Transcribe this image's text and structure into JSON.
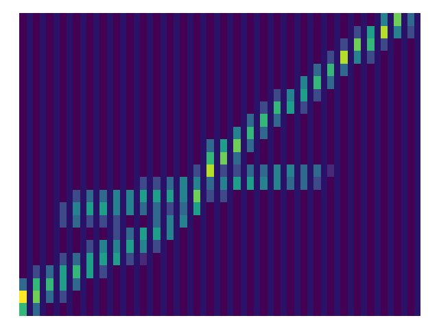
{
  "chart_data": {
    "type": "heatmap",
    "tick_labels": false,
    "color_range": [
      0,
      9
    ],
    "cells": [
      [
        6,
        9,
        3,
        0,
        0,
        0,
        0,
        0,
        0,
        0,
        0,
        0,
        0,
        0,
        0,
        0,
        0,
        0,
        0,
        0,
        0,
        0,
        0,
        0
      ],
      [
        3,
        7,
        6,
        2,
        0,
        0,
        0,
        0,
        0,
        0,
        0,
        0,
        0,
        0,
        0,
        0,
        0,
        0,
        0,
        0,
        0,
        0,
        0,
        0
      ],
      [
        0,
        3,
        6,
        3,
        0,
        0,
        0,
        0,
        0,
        0,
        0,
        0,
        0,
        0,
        0,
        0,
        0,
        0,
        0,
        0,
        0,
        0,
        0,
        0
      ],
      [
        0,
        2,
        5,
        5,
        2,
        0,
        0,
        2,
        2,
        0,
        0,
        0,
        0,
        0,
        0,
        0,
        0,
        0,
        0,
        0,
        0,
        0,
        0,
        0
      ],
      [
        0,
        0,
        3,
        6,
        3,
        0,
        0,
        3,
        4,
        2,
        0,
        0,
        0,
        0,
        0,
        0,
        0,
        0,
        0,
        0,
        0,
        0,
        0,
        0
      ],
      [
        0,
        0,
        0,
        5,
        5,
        2,
        0,
        2,
        5,
        3,
        0,
        0,
        0,
        0,
        0,
        0,
        0,
        0,
        0,
        0,
        0,
        0,
        0,
        0
      ],
      [
        0,
        0,
        0,
        2,
        5,
        4,
        0,
        2,
        5,
        3,
        0,
        0,
        0,
        0,
        0,
        0,
        0,
        0,
        0,
        0,
        0,
        0,
        0,
        0
      ],
      [
        0,
        0,
        0,
        0,
        5,
        4,
        2,
        2,
        4,
        4,
        0,
        0,
        0,
        0,
        0,
        0,
        0,
        0,
        0,
        0,
        0,
        0,
        0,
        0
      ],
      [
        0,
        0,
        0,
        0,
        2,
        5,
        3,
        0,
        4,
        4,
        0,
        0,
        0,
        0,
        0,
        0,
        0,
        0,
        0,
        0,
        0,
        0,
        0,
        0
      ],
      [
        0,
        0,
        0,
        0,
        1,
        4,
        5,
        0,
        3,
        5,
        2,
        0,
        0,
        0,
        0,
        0,
        0,
        0,
        0,
        0,
        0,
        0,
        0,
        0
      ],
      [
        0,
        0,
        0,
        0,
        0,
        2,
        5,
        3,
        3,
        5,
        2,
        0,
        0,
        0,
        0,
        0,
        0,
        0,
        0,
        0,
        0,
        0,
        0,
        0
      ],
      [
        0,
        0,
        0,
        0,
        0,
        0,
        4,
        4,
        2,
        5,
        3,
        0,
        0,
        0,
        0,
        0,
        0,
        0,
        0,
        0,
        0,
        0,
        0,
        0
      ],
      [
        0,
        0,
        0,
        0,
        0,
        0,
        0,
        4,
        3,
        4,
        4,
        0,
        0,
        0,
        0,
        0,
        0,
        0,
        0,
        0,
        0,
        0,
        0,
        0
      ],
      [
        0,
        0,
        0,
        0,
        0,
        0,
        0,
        0,
        5,
        7,
        4,
        2,
        0,
        0,
        0,
        0,
        0,
        0,
        0,
        0,
        0,
        0,
        0,
        0
      ],
      [
        0,
        0,
        0,
        0,
        0,
        0,
        0,
        0,
        0,
        2,
        3,
        8,
        6,
        3,
        0,
        0,
        0,
        0,
        0,
        0,
        0,
        0,
        0,
        0
      ],
      [
        0,
        0,
        0,
        0,
        0,
        0,
        0,
        0,
        0,
        2,
        4,
        2,
        7,
        5,
        0,
        0,
        0,
        0,
        0,
        0,
        0,
        0,
        0,
        0
      ],
      [
        0,
        0,
        0,
        0,
        0,
        0,
        0,
        0,
        0,
        0,
        5,
        2,
        3,
        7,
        4,
        0,
        0,
        0,
        0,
        0,
        0,
        0,
        0,
        0
      ],
      [
        0,
        0,
        0,
        0,
        0,
        0,
        0,
        0,
        0,
        0,
        5,
        3,
        0,
        3,
        6,
        3,
        0,
        0,
        0,
        0,
        0,
        0,
        0,
        0
      ],
      [
        0,
        0,
        0,
        0,
        0,
        0,
        0,
        0,
        0,
        0,
        4,
        3,
        0,
        0,
        3,
        6,
        2,
        0,
        0,
        0,
        0,
        0,
        0,
        0
      ],
      [
        0,
        0,
        0,
        0,
        0,
        0,
        0,
        0,
        0,
        0,
        4,
        4,
        0,
        0,
        0,
        3,
        6,
        2,
        0,
        0,
        0,
        0,
        0,
        0
      ],
      [
        0,
        0,
        0,
        0,
        0,
        0,
        0,
        0,
        0,
        0,
        3,
        4,
        0,
        0,
        0,
        0,
        5,
        4,
        0,
        0,
        0,
        0,
        0,
        0
      ],
      [
        0,
        0,
        0,
        0,
        0,
        0,
        0,
        0,
        0,
        0,
        3,
        3,
        0,
        0,
        0,
        0,
        2,
        5,
        4,
        0,
        0,
        0,
        0,
        0
      ],
      [
        0,
        0,
        0,
        0,
        0,
        0,
        0,
        0,
        0,
        0,
        2,
        3,
        0,
        0,
        0,
        0,
        0,
        2,
        6,
        3,
        0,
        0,
        0,
        0
      ],
      [
        0,
        0,
        0,
        0,
        0,
        0,
        0,
        0,
        0,
        0,
        0,
        1,
        0,
        0,
        0,
        0,
        0,
        0,
        3,
        6,
        2,
        0,
        0,
        0
      ],
      [
        0,
        0,
        0,
        0,
        0,
        0,
        0,
        0,
        0,
        0,
        0,
        0,
        0,
        0,
        0,
        0,
        0,
        0,
        0,
        3,
        8,
        2,
        0,
        0
      ],
      [
        0,
        0,
        0,
        0,
        0,
        0,
        0,
        0,
        0,
        0,
        0,
        0,
        0,
        0,
        0,
        0,
        0,
        0,
        0,
        0,
        4,
        7,
        2,
        0
      ],
      [
        0,
        0,
        0,
        0,
        0,
        0,
        0,
        0,
        0,
        0,
        0,
        0,
        0,
        0,
        0,
        0,
        0,
        0,
        0,
        0,
        2,
        6,
        5,
        0
      ],
      [
        0,
        0,
        0,
        0,
        0,
        0,
        0,
        0,
        0,
        0,
        0,
        0,
        0,
        0,
        0,
        0,
        0,
        0,
        0,
        0,
        0,
        2,
        8,
        4
      ],
      [
        0,
        0,
        0,
        0,
        0,
        0,
        0,
        0,
        0,
        0,
        0,
        0,
        0,
        0,
        0,
        0,
        0,
        0,
        0,
        0,
        0,
        0,
        4,
        7
      ],
      [
        0,
        0,
        0,
        0,
        0,
        0,
        0,
        0,
        0,
        0,
        0,
        0,
        0,
        0,
        0,
        0,
        0,
        0,
        0,
        0,
        0,
        0,
        2,
        3
      ]
    ]
  }
}
